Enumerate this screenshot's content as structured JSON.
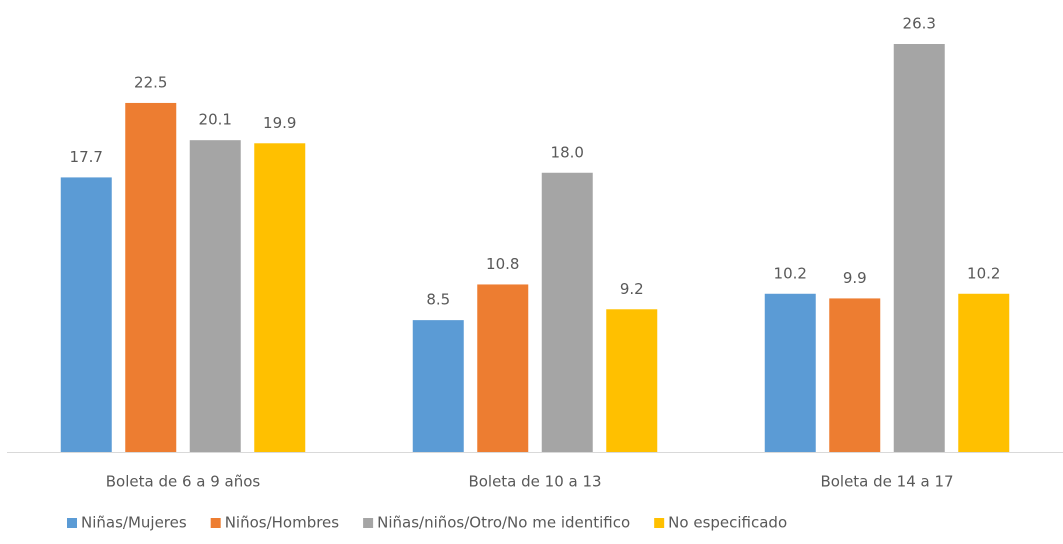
{
  "chart_data": {
    "type": "bar",
    "categories": [
      "Boleta de 6 a 9 años",
      "Boleta de 10 a 13",
      "Boleta de 14 a 17"
    ],
    "series": [
      {
        "name": "Niñas/Mujeres",
        "color": "#5b9bd5",
        "values": [
          17.7,
          8.5,
          10.2
        ],
        "value_labels": [
          "17.7",
          "8.5",
          "10.2"
        ]
      },
      {
        "name": "Niños/Hombres",
        "color": "#ed7d31",
        "values": [
          22.5,
          10.8,
          9.9
        ],
        "value_labels": [
          "22.5",
          "10.8",
          "9.9"
        ]
      },
      {
        "name": "Niñas/niños/Otro/No me identifico",
        "color": "#a5a5a5",
        "values": [
          20.1,
          18.0,
          26.3
        ],
        "value_labels": [
          "20.1",
          "18.0",
          "26.3"
        ]
      },
      {
        "name": "No especificado",
        "color": "#ffc000",
        "values": [
          19.9,
          9.2,
          10.2
        ],
        "value_labels": [
          "19.9",
          "9.2",
          "10.2"
        ]
      }
    ],
    "legend": "bottom"
  }
}
